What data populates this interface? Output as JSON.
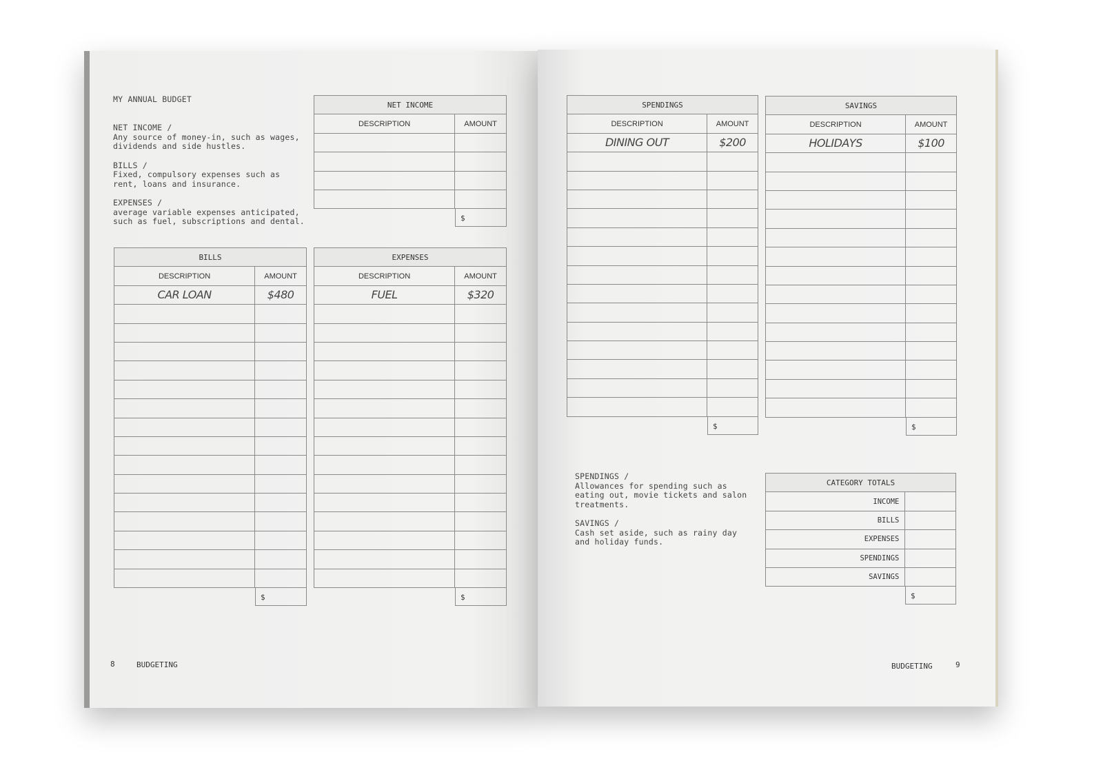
{
  "left_page": {
    "title": "MY ANNUAL BUDGET",
    "definitions": [
      {
        "heading": "NET INCOME /",
        "text": "Any source of money-in, such as wages,\ndividends and side hustles."
      },
      {
        "heading": "BILLS /",
        "text": "Fixed, compulsory expenses such as\nrent, loans and insurance."
      },
      {
        "heading": "EXPENSES /",
        "text": "average variable expenses anticipated,\nsuch as fuel, subscriptions and dental."
      }
    ],
    "page_number": "8",
    "footer": "BUDGETING"
  },
  "right_page": {
    "definitions": [
      {
        "heading": "SPENDINGS /",
        "text": "Allowances for spending such as\neating out, movie tickets and salon\ntreatments."
      },
      {
        "heading": "SAVINGS /",
        "text": "Cash set aside, such as rainy day\nand holiday funds."
      }
    ],
    "page_number": "9",
    "footer": "BUDGETING"
  },
  "tables": {
    "net_income": {
      "title": "NET INCOME",
      "col1": "DESCRIPTION",
      "col2": "AMOUNT",
      "rows": [
        [
          "",
          ""
        ],
        [
          "",
          ""
        ],
        [
          "",
          ""
        ],
        [
          "",
          ""
        ]
      ],
      "total": "$"
    },
    "bills": {
      "title": "BILLS",
      "col1": "DESCRIPTION",
      "col2": "AMOUNT",
      "rows": [
        [
          "CAR LOAN",
          "$480"
        ],
        [
          "",
          ""
        ],
        [
          "",
          ""
        ],
        [
          "",
          ""
        ],
        [
          "",
          ""
        ],
        [
          "",
          ""
        ],
        [
          "",
          ""
        ],
        [
          "",
          ""
        ],
        [
          "",
          ""
        ],
        [
          "",
          ""
        ],
        [
          "",
          ""
        ],
        [
          "",
          ""
        ],
        [
          "",
          ""
        ],
        [
          "",
          ""
        ],
        [
          "",
          ""
        ],
        [
          "",
          ""
        ]
      ],
      "total": "$"
    },
    "expenses": {
      "title": "EXPENSES",
      "col1": "DESCRIPTION",
      "col2": "AMOUNT",
      "rows": [
        [
          "FUEL",
          "$320"
        ],
        [
          "",
          ""
        ],
        [
          "",
          ""
        ],
        [
          "",
          ""
        ],
        [
          "",
          ""
        ],
        [
          "",
          ""
        ],
        [
          "",
          ""
        ],
        [
          "",
          ""
        ],
        [
          "",
          ""
        ],
        [
          "",
          ""
        ],
        [
          "",
          ""
        ],
        [
          "",
          ""
        ],
        [
          "",
          ""
        ],
        [
          "",
          ""
        ],
        [
          "",
          ""
        ],
        [
          "",
          ""
        ]
      ],
      "total": "$"
    },
    "spendings": {
      "title": "SPENDINGS",
      "col1": "DESCRIPTION",
      "col2": "AMOUNT",
      "rows": [
        [
          "DINING OUT",
          "$200"
        ],
        [
          "",
          ""
        ],
        [
          "",
          ""
        ],
        [
          "",
          ""
        ],
        [
          "",
          ""
        ],
        [
          "",
          ""
        ],
        [
          "",
          ""
        ],
        [
          "",
          ""
        ],
        [
          "",
          ""
        ],
        [
          "",
          ""
        ],
        [
          "",
          ""
        ],
        [
          "",
          ""
        ],
        [
          "",
          ""
        ],
        [
          "",
          ""
        ],
        [
          "",
          ""
        ]
      ],
      "total": "$"
    },
    "savings": {
      "title": "SAVINGS",
      "col1": "DESCRIPTION",
      "col2": "AMOUNT",
      "rows": [
        [
          "HOLIDAYS",
          "$100"
        ],
        [
          "",
          ""
        ],
        [
          "",
          ""
        ],
        [
          "",
          ""
        ],
        [
          "",
          ""
        ],
        [
          "",
          ""
        ],
        [
          "",
          ""
        ],
        [
          "",
          ""
        ],
        [
          "",
          ""
        ],
        [
          "",
          ""
        ],
        [
          "",
          ""
        ],
        [
          "",
          ""
        ],
        [
          "",
          ""
        ],
        [
          "",
          ""
        ],
        [
          "",
          ""
        ]
      ],
      "total": "$"
    },
    "category_totals": {
      "title": "CATEGORY TOTALS",
      "rows": [
        [
          "INCOME",
          ""
        ],
        [
          "BILLS",
          ""
        ],
        [
          "EXPENSES",
          ""
        ],
        [
          "SPENDINGS",
          ""
        ],
        [
          "SAVINGS",
          ""
        ]
      ],
      "total": "$"
    }
  }
}
